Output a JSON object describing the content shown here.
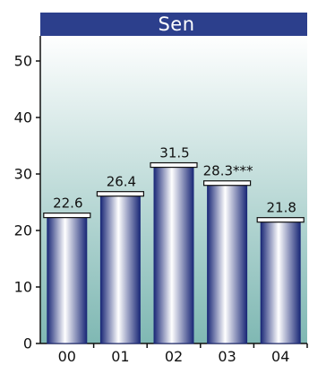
{
  "chart_data": {
    "type": "bar",
    "title": "Sen",
    "categories": [
      "00",
      "01",
      "02",
      "03",
      "04"
    ],
    "values": [
      22.6,
      26.4,
      31.5,
      28.3,
      21.8
    ],
    "data_labels": [
      "22.6",
      "26.4",
      "31.5",
      "28.3***",
      "21.8"
    ],
    "yticks": [
      "0",
      "10",
      "20",
      "30",
      "40",
      "50"
    ],
    "ylim": [
      0,
      55
    ],
    "xlabel": "",
    "ylabel": "",
    "grid": false,
    "colors": {
      "title_bar": "#2c3f8c",
      "bar_dark": "#1c2a78",
      "bar_light": "#ffffff",
      "plot_top": "#ffffff",
      "plot_bottom": "#7fb8b3"
    }
  }
}
